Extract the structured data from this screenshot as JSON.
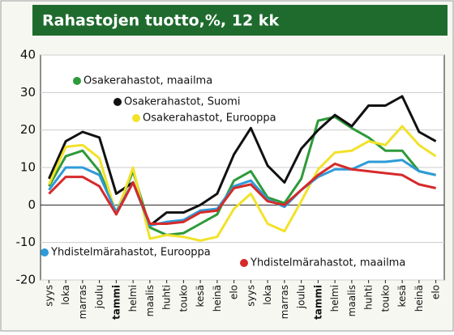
{
  "chart_data": {
    "type": "line",
    "title": "Rahastojen tuotto,%, 12 kk",
    "categories": [
      "syys",
      "loka",
      "marras",
      "joulu",
      "tammi",
      "helmi",
      "maalis",
      "huhti",
      "touko",
      "kesä",
      "heinä",
      "elo",
      "syys",
      "loka",
      "marras",
      "joulu",
      "tammi",
      "helmi",
      "maalis",
      "huhti",
      "touko",
      "kesä",
      "heinä",
      "elo"
    ],
    "bold_categories": [
      4,
      16
    ],
    "series": [
      {
        "name": "Osakerahastot, maailma",
        "color": "#2e9a3a",
        "values": [
          5,
          13,
          14.5,
          9,
          -2,
          9,
          -6,
          -8,
          -7.5,
          -5,
          -2.5,
          6.5,
          9,
          2,
          0.5,
          7,
          22.5,
          23.5,
          20.5,
          18,
          14.5,
          14.5,
          9,
          8
        ]
      },
      {
        "name": "Osakerahastot, Suomi",
        "color": "#111111",
        "values": [
          7,
          17,
          19.5,
          18,
          3,
          6,
          -5.5,
          -2,
          -2,
          0,
          3,
          13.5,
          20.5,
          10.5,
          6,
          15,
          20,
          24,
          21,
          26.5,
          26.5,
          29,
          19.5,
          17
        ]
      },
      {
        "name": "Osakerahastot, Eurooppa",
        "color": "#f2e22a",
        "values": [
          5.5,
          15.5,
          16,
          12.5,
          -2.5,
          10,
          -9,
          -8,
          -8.5,
          -9.5,
          -8.5,
          -1,
          3,
          -5,
          -7,
          1,
          9.5,
          14,
          14.5,
          17,
          16,
          21,
          16,
          13
        ]
      },
      {
        "name": "Yhdistelmärahastot, Eurooppa",
        "color": "#2f9ad8",
        "values": [
          4,
          10,
          10,
          8,
          -2,
          6,
          -5.5,
          -4.5,
          -4,
          -1.5,
          -1,
          5,
          6.5,
          1.5,
          -0.5,
          4,
          7.5,
          9.5,
          9.5,
          11.5,
          11.5,
          12,
          9,
          8
        ]
      },
      {
        "name": "Yhdistelmärahastot, maailma",
        "color": "#d62a2a",
        "values": [
          3,
          7.5,
          7.5,
          5,
          -2.5,
          6,
          -5,
          -5,
          -4.5,
          -2,
          -1.5,
          4.5,
          5.5,
          1,
          0,
          4,
          8,
          11,
          9.5,
          9,
          8.5,
          8,
          5.5,
          4.5
        ]
      }
    ],
    "ylim": [
      -20,
      40
    ],
    "yticks": [
      -20,
      -10,
      0,
      10,
      20,
      30,
      40
    ],
    "grid": true
  }
}
